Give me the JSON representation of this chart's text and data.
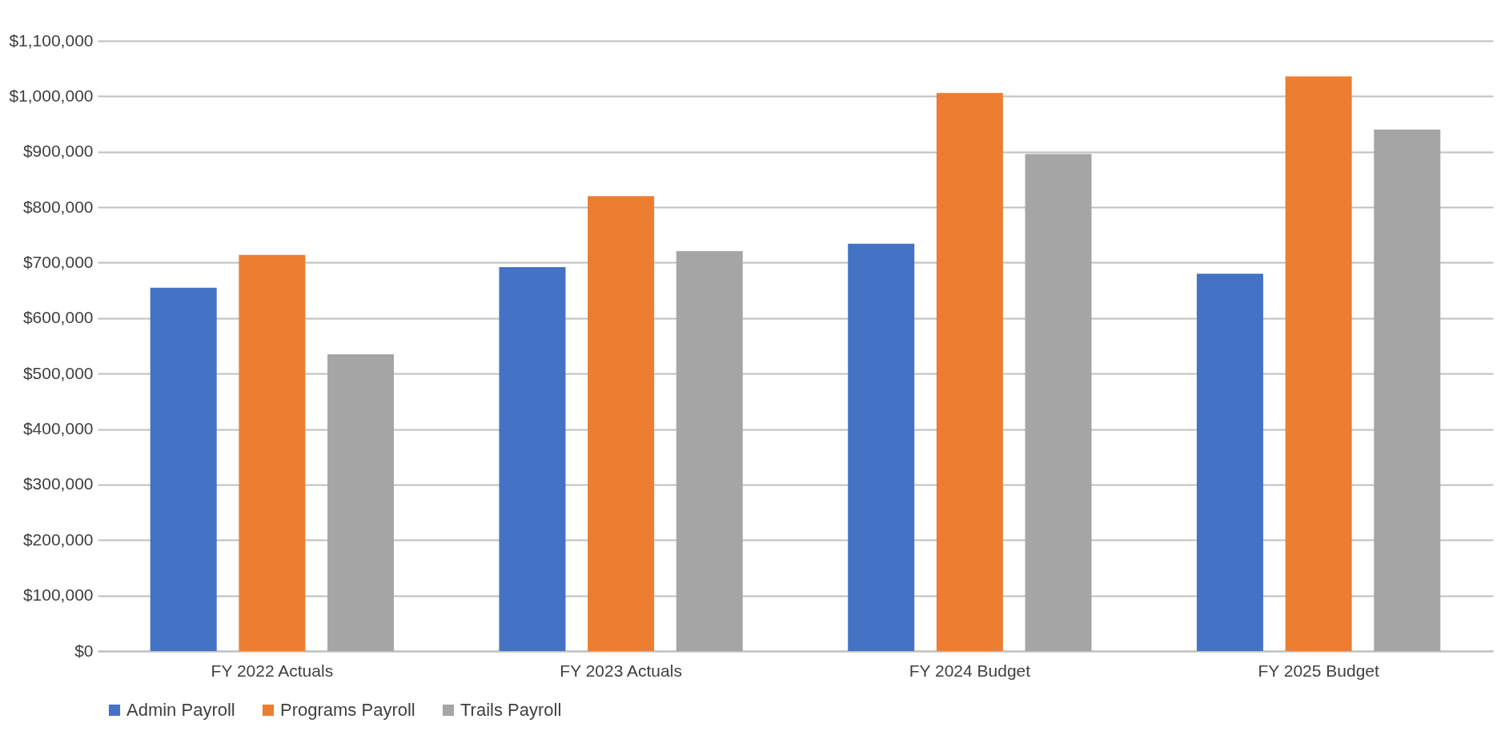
{
  "chart_data": {
    "type": "bar",
    "categories": [
      "FY 2022 Actuals",
      "FY 2023 Actuals",
      "FY 2024 Budget",
      "FY 2025 Budget"
    ],
    "series": [
      {
        "name": "Admin Payroll",
        "color": "#4472c4",
        "values": [
          655000,
          692000,
          734000,
          680000
        ]
      },
      {
        "name": "Programs Payroll",
        "color": "#ed7d31",
        "values": [
          714000,
          820000,
          1006000,
          1036000
        ]
      },
      {
        "name": "Trails Payroll",
        "color": "#a5a5a5",
        "values": [
          535000,
          721000,
          896000,
          940000
        ]
      }
    ],
    "ylim": [
      0,
      1100000
    ],
    "yticks": [
      {
        "value": 0,
        "label": "$0"
      },
      {
        "value": 100000,
        "label": "$100,000"
      },
      {
        "value": 200000,
        "label": "$200,000"
      },
      {
        "value": 300000,
        "label": "$300,000"
      },
      {
        "value": 400000,
        "label": "$400,000"
      },
      {
        "value": 500000,
        "label": "$500,000"
      },
      {
        "value": 600000,
        "label": "$600,000"
      },
      {
        "value": 700000,
        "label": "$700,000"
      },
      {
        "value": 800000,
        "label": "$800,000"
      },
      {
        "value": 900000,
        "label": "$900,000"
      },
      {
        "value": 1000000,
        "label": "$1,000,000"
      },
      {
        "value": 1100000,
        "label": "$1,100,000"
      }
    ],
    "grid": "y",
    "legend": "bottom"
  }
}
